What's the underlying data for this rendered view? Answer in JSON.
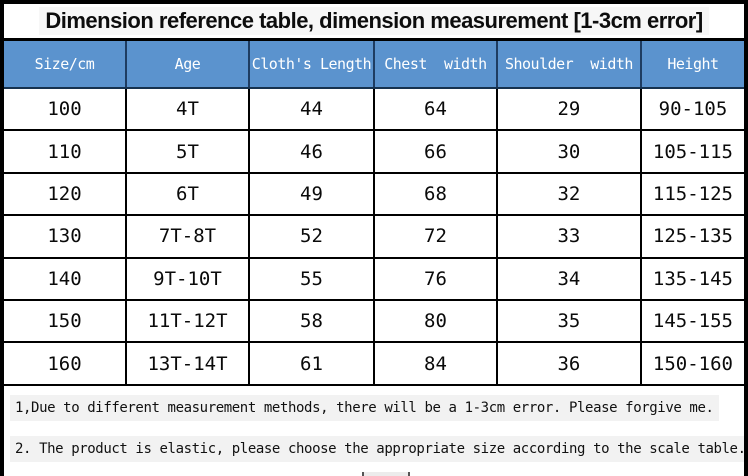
{
  "title": "Dimension reference table, dimension measurement [1-3cm error]",
  "table": {
    "headers": [
      "Size/cm",
      "Age",
      "Cloth's Length",
      "Chest  width",
      "Shoulder  width",
      "Height"
    ],
    "rows": [
      [
        "100",
        "4T",
        "44",
        "64",
        "29",
        "90-105"
      ],
      [
        "110",
        "5T",
        "46",
        "66",
        "30",
        "105-115"
      ],
      [
        "120",
        "6T",
        "49",
        "68",
        "32",
        "115-125"
      ],
      [
        "130",
        "7T-8T",
        "52",
        "72",
        "33",
        "125-135"
      ],
      [
        "140",
        "9T-10T",
        "55",
        "76",
        "34",
        "135-145"
      ],
      [
        "150",
        "11T-12T",
        "58",
        "80",
        "35",
        "145-155"
      ],
      [
        "160",
        "13T-14T",
        "61",
        "84",
        "36",
        "150-160"
      ]
    ]
  },
  "notes": [
    "1,Due to different measurement methods, there will be a 1-3cm error. Please forgive me.",
    "2. The product is elastic, please choose the appropriate size according to the scale table."
  ],
  "colors": {
    "header_bg": "#5b93ce",
    "header_text": "#ffffff",
    "header_divider": "#1e3c61",
    "grid": "#000000",
    "note_highlight": "#f2f2f2"
  }
}
